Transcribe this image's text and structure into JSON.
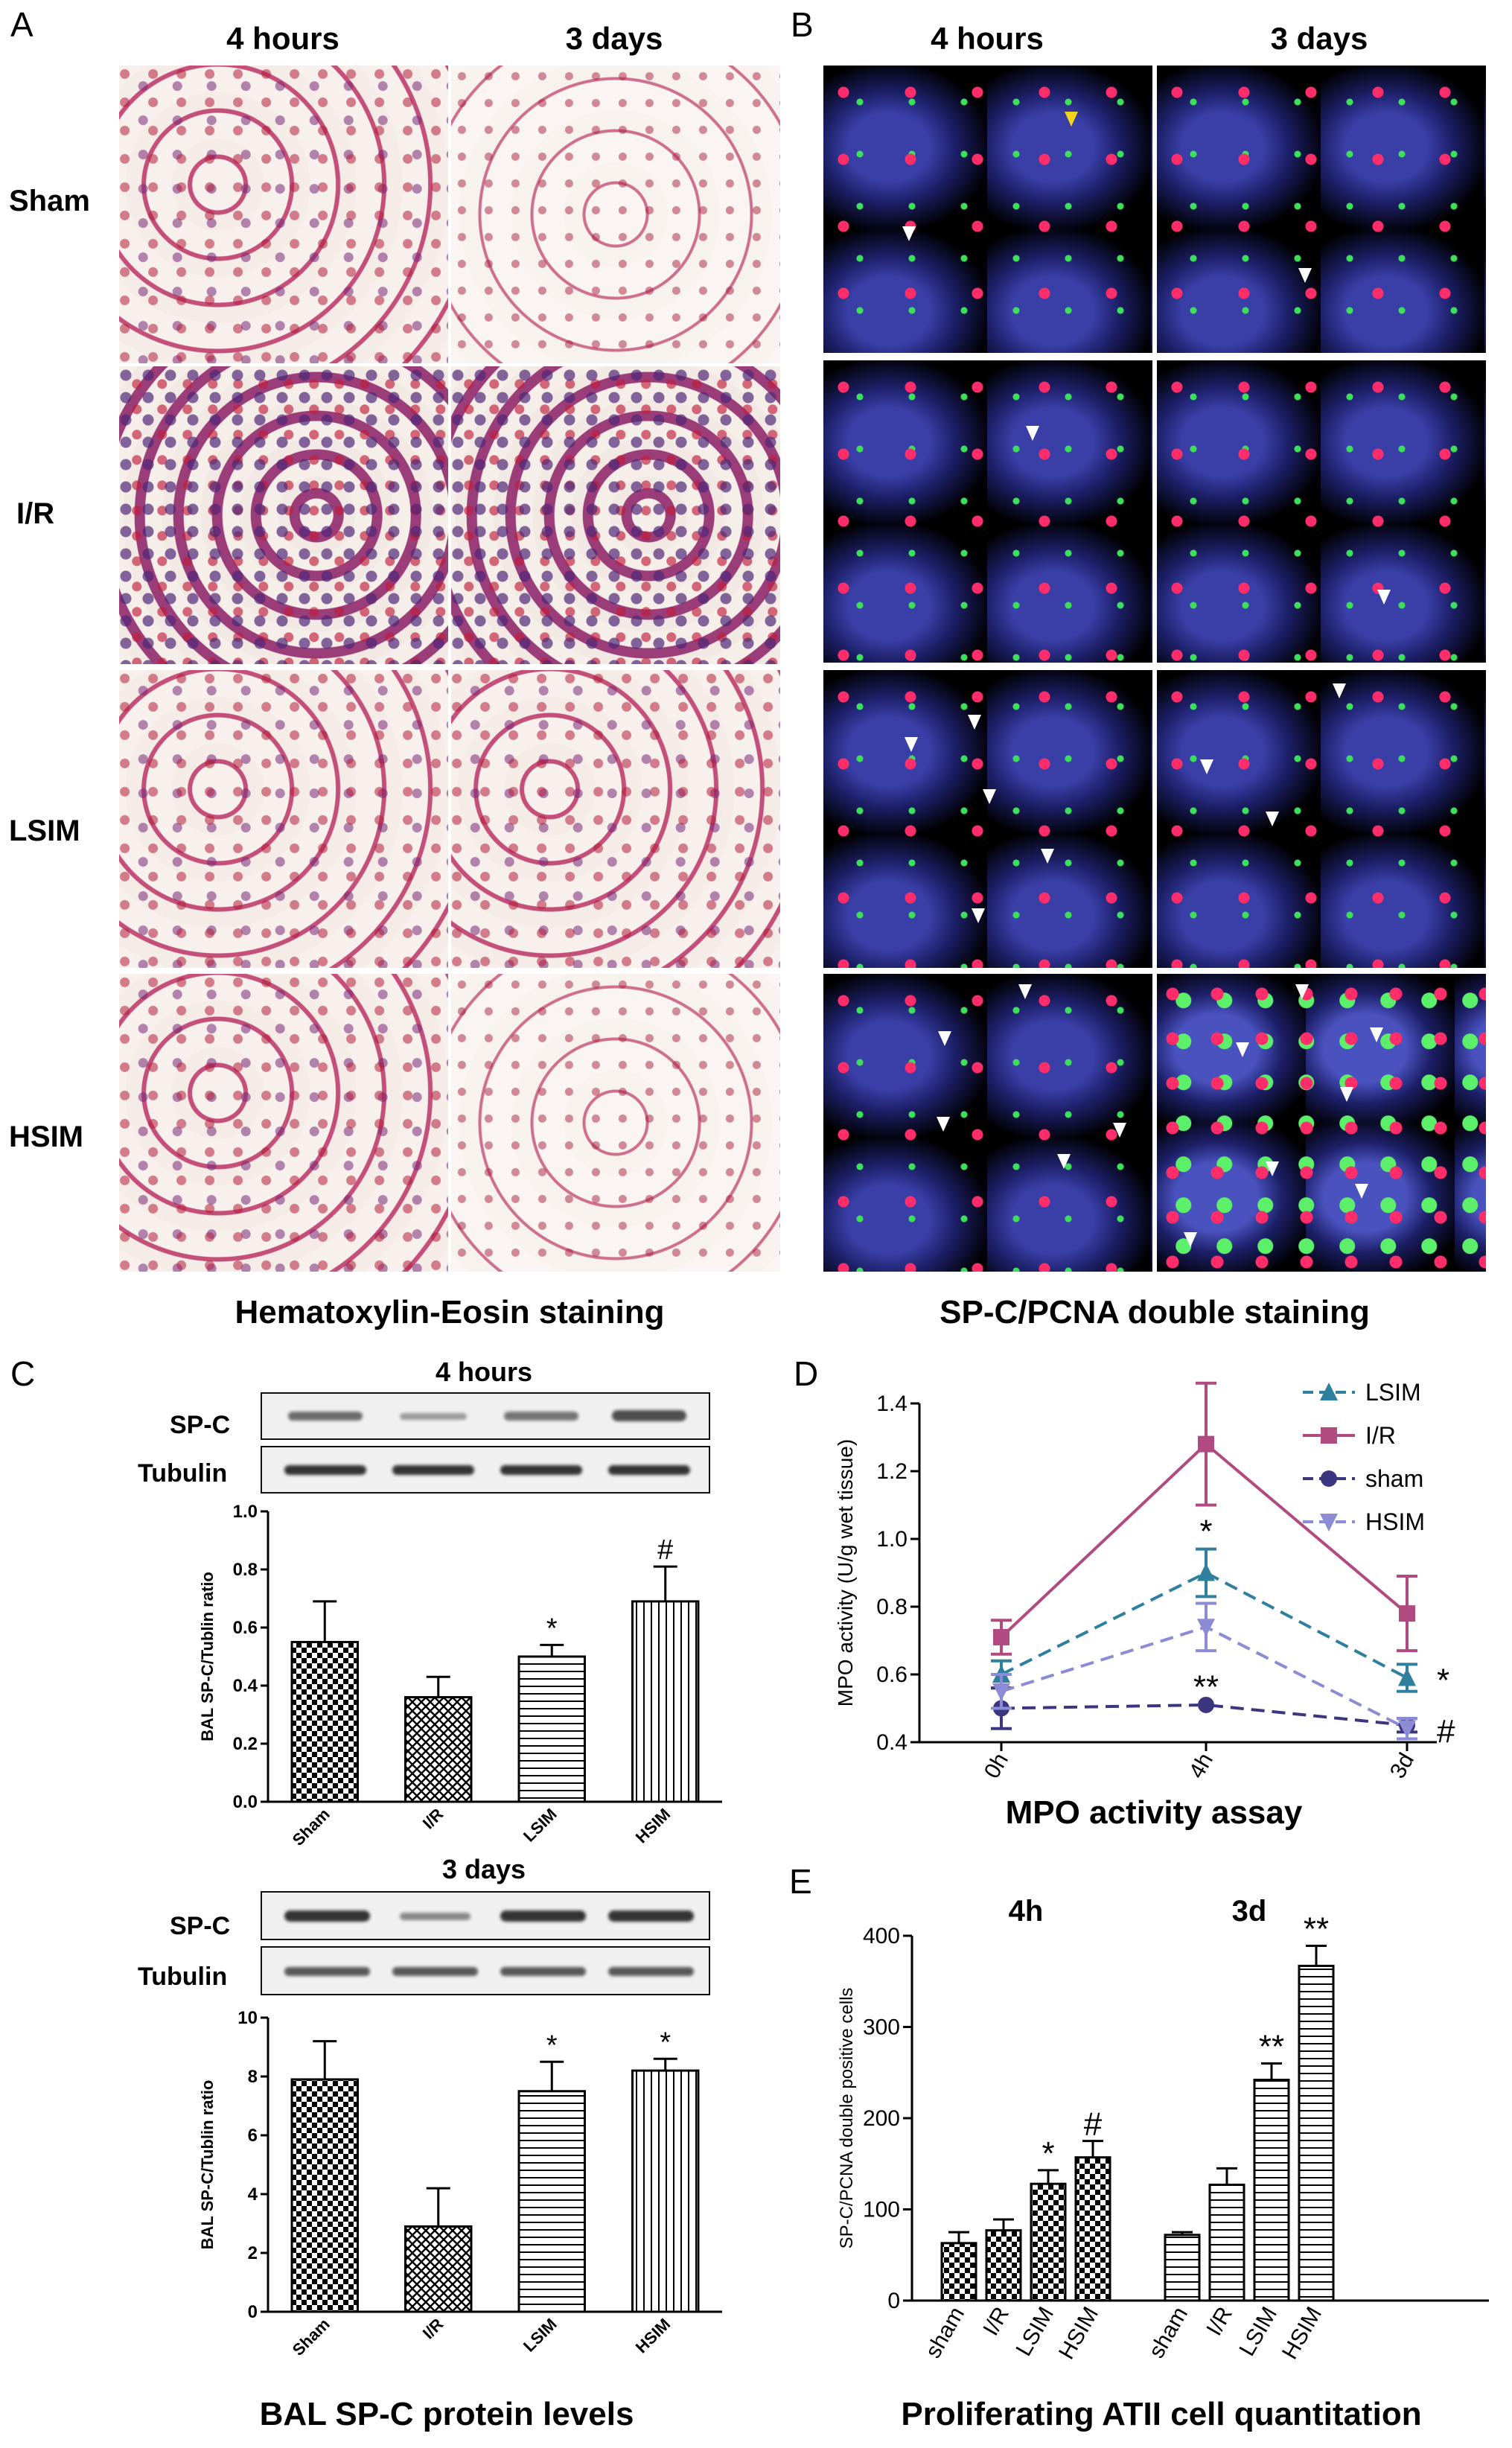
{
  "panelA": {
    "letter": "A",
    "col_headers": [
      "4 hours",
      "3 days"
    ],
    "row_labels": [
      "Sham",
      "I/R",
      "LSIM",
      "HSIM"
    ],
    "caption": "Hematoxylin-Eosin staining"
  },
  "panelB": {
    "letter": "B",
    "col_headers": [
      "4 hours",
      "3 days"
    ],
    "caption": "SP-C/PCNA double staining"
  },
  "panelC": {
    "letter": "C",
    "caption": "BAL SP-C protein levels",
    "blot_labels": [
      "SP-C",
      "Tubulin"
    ],
    "top": {
      "title": "4 hours"
    },
    "bottom": {
      "title": "3 days"
    }
  },
  "panelD": {
    "letter": "D",
    "caption": "MPO activity assay"
  },
  "panelE": {
    "letter": "E",
    "caption": "Proliferating ATII cell quantitation"
  },
  "chart_data": [
    {
      "id": "C-4h",
      "type": "bar",
      "title": "4 hours",
      "categories": [
        "Sham",
        "I/R",
        "LSIM",
        "HSIM"
      ],
      "values": [
        0.55,
        0.36,
        0.5,
        0.69
      ],
      "errors": [
        0.14,
        0.07,
        0.04,
        0.12
      ],
      "annotations": [
        "",
        "",
        "*",
        "#"
      ],
      "ylabel": "BAL SP-C/Tublin ratio",
      "ylim": [
        0,
        1.0
      ],
      "yticks": [
        "0.0",
        "0.2",
        "0.4",
        "0.6",
        "0.8",
        "1.0"
      ]
    },
    {
      "id": "C-3d",
      "type": "bar",
      "title": "3 days",
      "categories": [
        "Sham",
        "I/R",
        "LSIM",
        "HSIM"
      ],
      "values": [
        7.9,
        2.9,
        7.5,
        8.2
      ],
      "errors": [
        1.3,
        1.3,
        1.0,
        0.4
      ],
      "annotations": [
        "",
        "",
        "*",
        "*"
      ],
      "ylabel": "BAL SP-C/Tublin ratio",
      "ylim": [
        0,
        10
      ],
      "yticks": [
        "0",
        "2",
        "4",
        "6",
        "8",
        "10"
      ]
    },
    {
      "id": "D",
      "type": "line",
      "categories": [
        "0h",
        "4h",
        "3d"
      ],
      "ylabel": "MPO activity (U/g wet tissue)",
      "ylim": [
        0.4,
        1.4
      ],
      "yticks": [
        "0.4",
        "0.6",
        "0.8",
        "1.0",
        "1.2",
        "1.4"
      ],
      "series": [
        {
          "name": "LSIM",
          "values": [
            0.6,
            0.9,
            0.59
          ],
          "errors": [
            0.04,
            0.07,
            0.04
          ],
          "color": "#2f7f9e",
          "marker": "triangle",
          "dash": true
        },
        {
          "name": "I/R",
          "values": [
            0.71,
            1.28,
            0.78
          ],
          "errors": [
            0.05,
            0.18,
            0.11
          ],
          "color": "#b04a80",
          "marker": "square",
          "dash": false
        },
        {
          "name": "sham",
          "values": [
            0.5,
            0.51,
            0.45
          ],
          "errors": [
            0.06,
            0.0,
            0.02
          ],
          "color": "#3c3680",
          "marker": "circle",
          "dash": true
        },
        {
          "name": "HSIM",
          "values": [
            0.55,
            0.74,
            0.44
          ],
          "errors": [
            0.05,
            0.07,
            0.03
          ],
          "color": "#8c8cd6",
          "marker": "invtriangle",
          "dash": true
        }
      ],
      "annotations": [
        {
          "text": "*",
          "x": "4h",
          "y": 1.03
        },
        {
          "text": "**",
          "x": "4h",
          "y": 0.57
        },
        {
          "text": "*",
          "x": "3d",
          "y": 0.59
        },
        {
          "text": "#",
          "x": "3d",
          "y": 0.44
        }
      ]
    },
    {
      "id": "E",
      "type": "bar",
      "groups": [
        "4h",
        "3d"
      ],
      "categories": [
        "sham",
        "I/R",
        "LSIM",
        "HSIM",
        "sham",
        "I/R",
        "LSIM",
        "HSIM"
      ],
      "values": [
        63,
        77,
        128,
        157,
        72,
        127,
        242,
        367
      ],
      "errors": [
        12,
        12,
        15,
        18,
        3,
        18,
        18,
        22
      ],
      "annotations": [
        "",
        "",
        "*",
        "#",
        "",
        "",
        "**",
        "**"
      ],
      "ylabel": "SP-C/PCNA double positive cells",
      "ylim": [
        0,
        400
      ],
      "yticks": [
        "0",
        "100",
        "200",
        "300",
        "400"
      ]
    }
  ]
}
